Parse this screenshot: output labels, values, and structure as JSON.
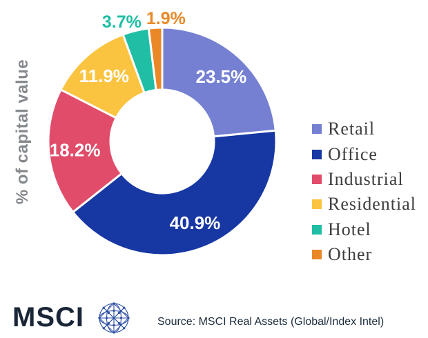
{
  "chart_data": {
    "type": "pie",
    "subtype": "donut",
    "title": "",
    "ylabel": "% of capital value",
    "categories": [
      "Retail",
      "Office",
      "Industrial",
      "Residential",
      "Hotel",
      "Other"
    ],
    "values": [
      23.5,
      40.9,
      18.2,
      11.9,
      3.7,
      1.9
    ],
    "data_labels": [
      "23.5%",
      "40.9%",
      "18.2%",
      "11.9%",
      "3.7%",
      "1.9%"
    ],
    "colors": [
      "#7580D2",
      "#1737A3",
      "#E04C69",
      "#FBC440",
      "#1FBEA5",
      "#EA8827"
    ],
    "legend_position": "right",
    "legend_labels": [
      "Retail",
      "Office",
      "Industrial",
      "Residential",
      "Hotel",
      "Other"
    ],
    "inside_label_color": "#FFFFFF",
    "start_angle_deg": 0,
    "direction": "clockwise"
  },
  "footer": {
    "logo_text": "MSCI",
    "globe_icon": "msci-network-globe-icon",
    "source": "Source: MSCI Real Assets (Global/Index Intel)"
  },
  "style": {
    "axis_label_color": "#85898E",
    "legend_text_color": "#3D3D3D",
    "slice_separator_color": "#FFFFFF",
    "logo_color": "#1A2638",
    "globe_color": "#2B4DA5",
    "source_color": "#1B2B3C",
    "background": "#FFFFFF"
  }
}
